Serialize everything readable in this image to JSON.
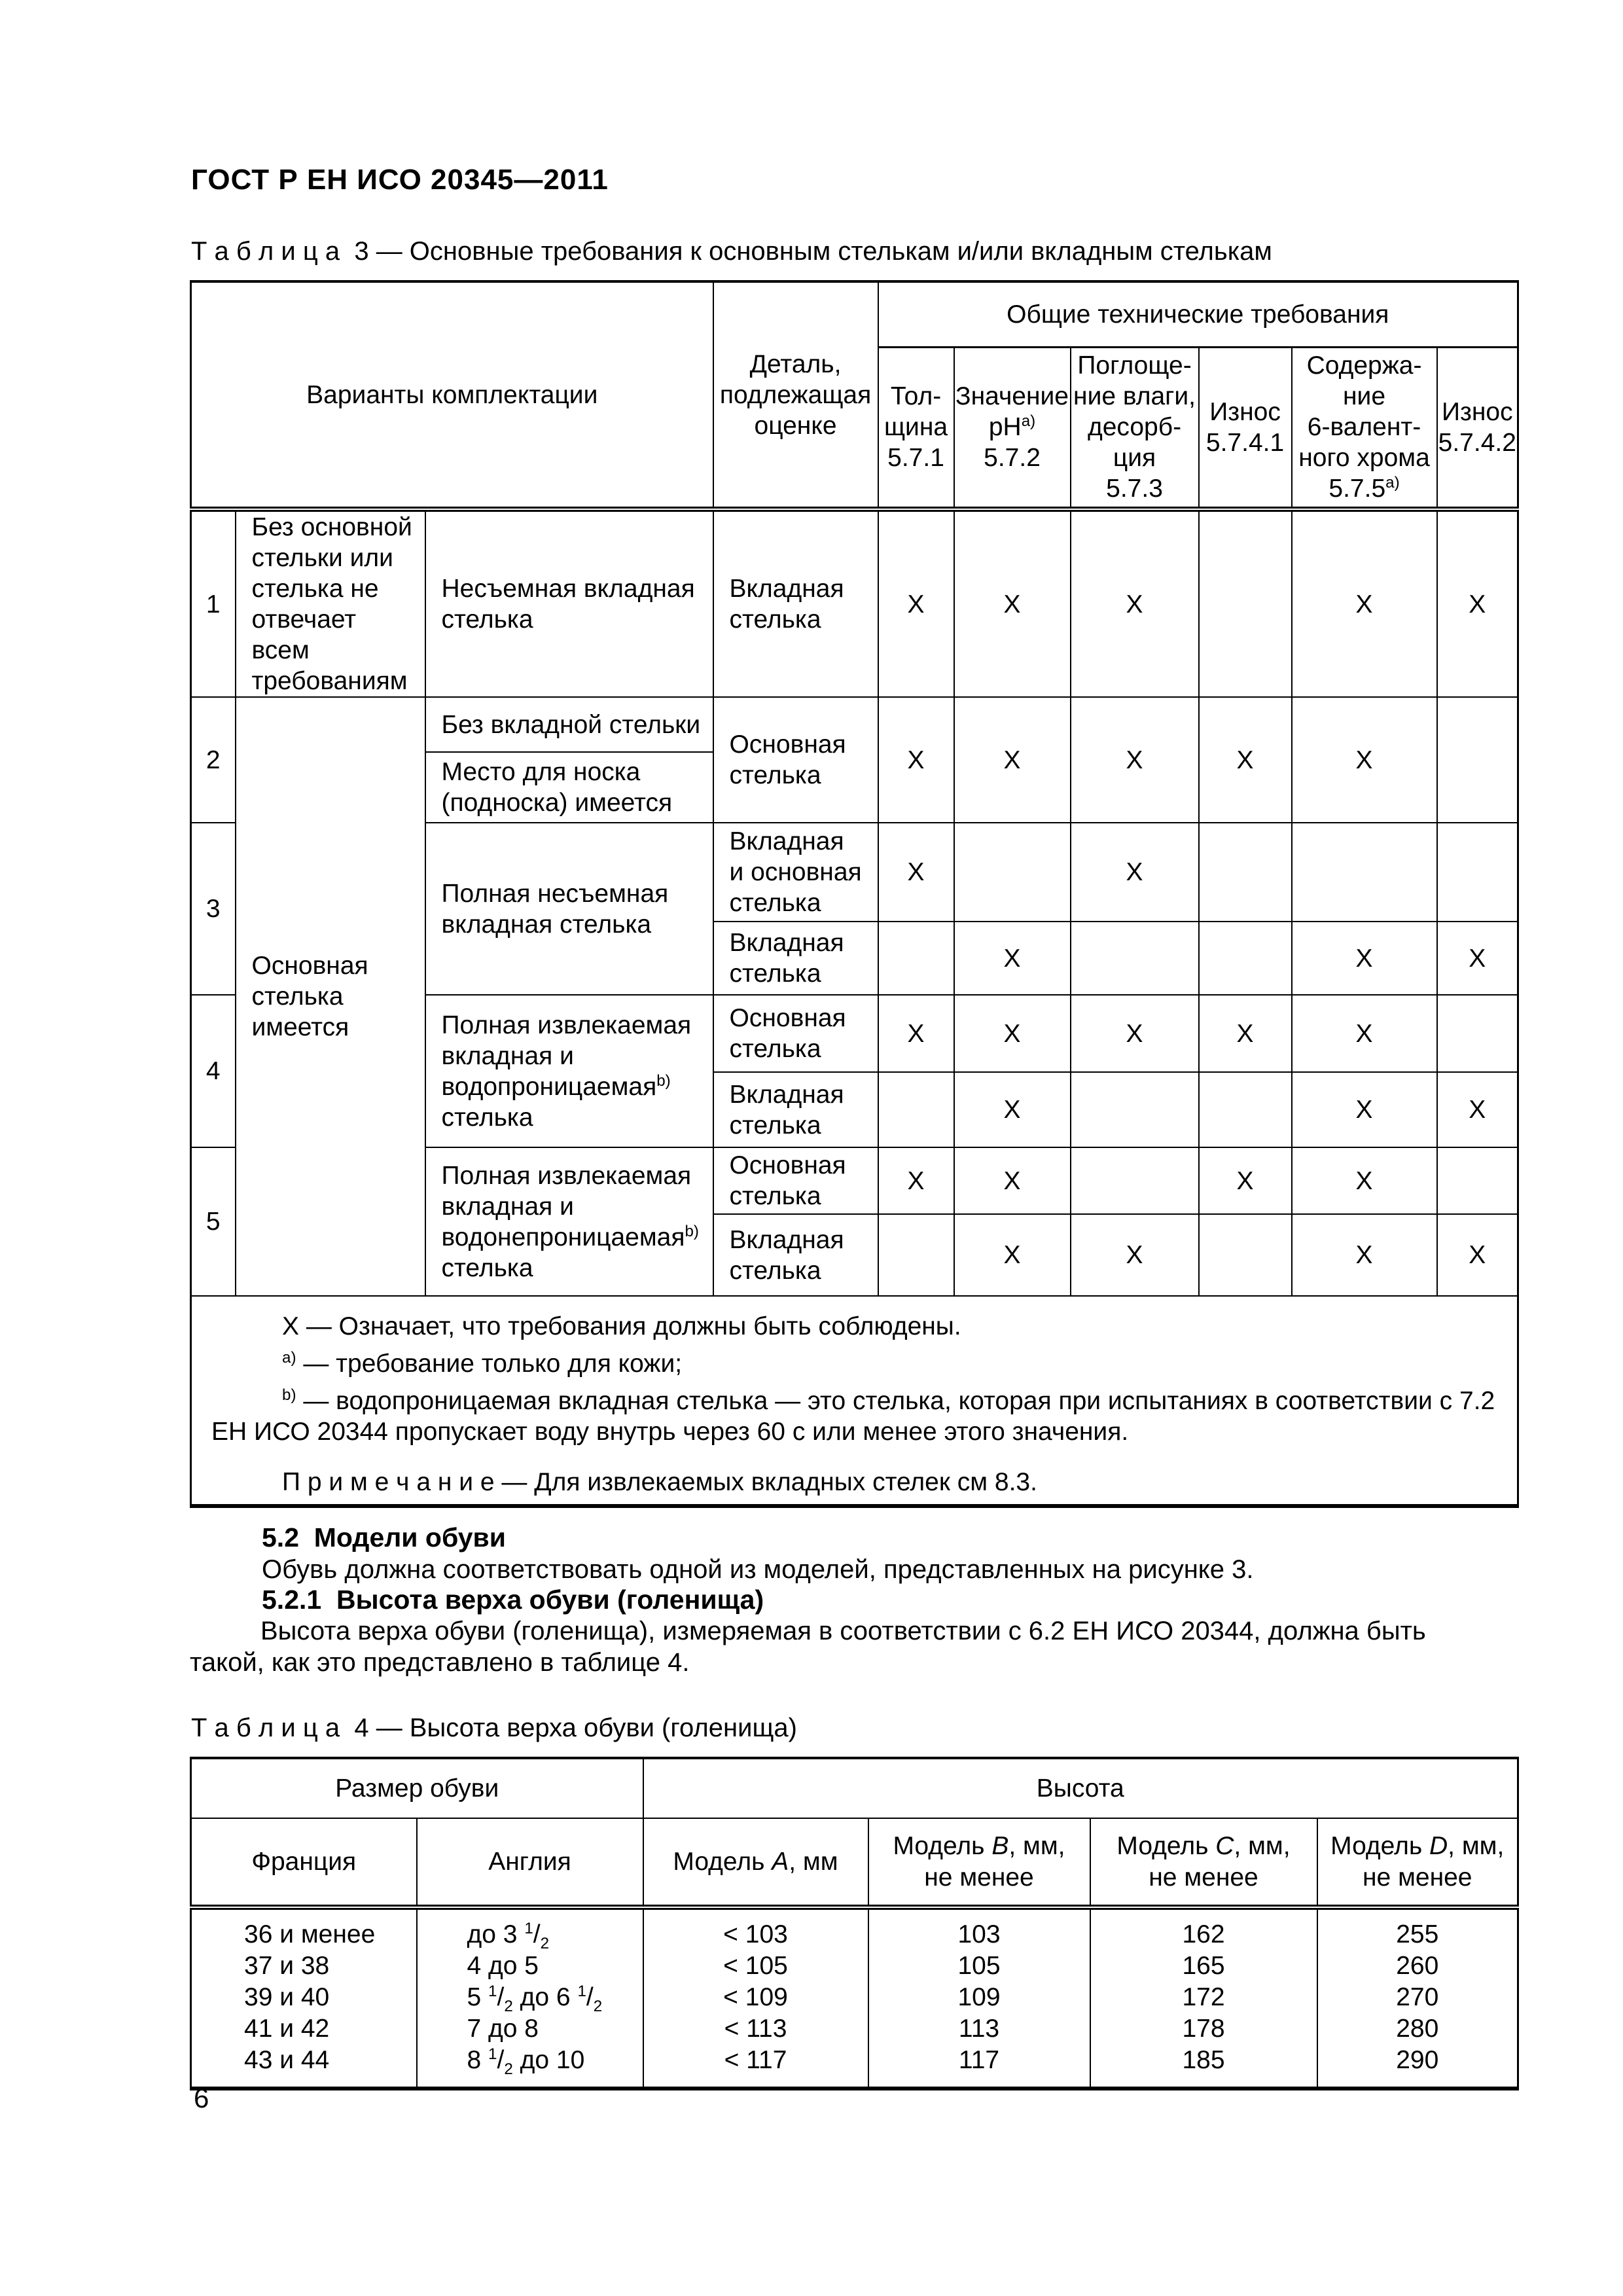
{
  "page": {
    "header": "ГОСТ Р ЕН ИСО 20345—2011",
    "number": "6"
  },
  "table3": {
    "caption": "Т а б л и ц а  3 — Основные требования к основным стелькам и/или вкладным стелькам",
    "header": {
      "variants": "Варианты комплектации",
      "detail": "Деталь,\nподлежащая\nоценке",
      "general": "Общие технические требования",
      "cols": [
        "Тол-\nщина\n5.7.1",
        "Значение\nрН^{а)}\n5.7.2",
        "Поглоще-\nние влаги,\nдесорб-\nция\n5.7.3",
        "Износ\n5.7.4.1",
        "Содержа-\nние\n6-валент-\nного хрома\n5.7.5^{а)}",
        "Износ\n5.7.4.2"
      ]
    },
    "body": {
      "group2": "Основная\nстелька\nимеется",
      "r1": {
        "num": "1",
        "group": "Без основной\nстельки или\nстелька не\nотвечает\nвсем\nтребованиям",
        "variant": "Несъемная вкладная\nстелька",
        "detail": "Вкладная\nстелька",
        "marks": [
          "X",
          "X",
          "X",
          "",
          "X",
          "X"
        ]
      },
      "r2": {
        "num": "2",
        "variant_a": "Без вкладной стельки",
        "variant_b": "Место для носка\n(подноска) имеется",
        "detail": "Основная\nстелька",
        "marks": [
          "X",
          "X",
          "X",
          "X",
          "X",
          ""
        ]
      },
      "r3": {
        "num": "3",
        "variant": "Полная несъемная\nвкладная стелька",
        "detail_a": "Вкладная\nи основная\nстелька",
        "marks_a": [
          "X",
          "",
          "X",
          "",
          "",
          ""
        ],
        "detail_b": "Вкладная\nстелька",
        "marks_b": [
          "",
          "X",
          "",
          "",
          "X",
          "X"
        ]
      },
      "r4": {
        "num": "4",
        "variant": "Полная извлекаемая\nвкладная и\nводопроницаемая^{b)}\nстелька",
        "detail_a": "Основная\nстелька",
        "marks_a": [
          "X",
          "X",
          "X",
          "X",
          "X",
          ""
        ],
        "detail_b": "Вкладная\nстелька",
        "marks_b": [
          "",
          "X",
          "",
          "",
          "X",
          "X"
        ]
      },
      "r5": {
        "num": "5",
        "variant": "Полная извлекаемая\nвкладная и\nводонепроницаемая^{b)}\nстелька",
        "detail_a": "Основная\nстелька",
        "marks_a": [
          "X",
          "X",
          "",
          "X",
          "X",
          ""
        ],
        "detail_b": "Вкладная\nстелька",
        "marks_b": [
          "",
          "X",
          "X",
          "",
          "X",
          "X"
        ]
      }
    },
    "footnotes": [
      "X — Означает, что требования должны быть соблюдены.",
      "^{а)} — требование только для кожи;",
      "^{b)} — водопроницаемая  вкладная  стелька — это  стелька,  которая  при  испытаниях  в  соответствии  с  7.2\nЕН ИСО 20344 пропускает воду внутрь через 60 с или менее этого значения."
    ],
    "note": "П р и м е ч а н и е — Для извлекаемых вкладных стелек см 8.3."
  },
  "section": {
    "h52": "5.2  Модели обуви",
    "p1": "Обувь должна соответствовать одной из моделей, представленных на рисунке 3.",
    "h521": "5.2.1  Высота верха обуви (голенища)",
    "p2": "Высота верха обуви (голенища), измеряемая в соответствии с 6.2 ЕН ИСО 20344, должна быть\nтакой, как это представлено в таблице 4."
  },
  "table4": {
    "caption": "Т а б л и ц а  4 — Высота верха обуви (голенища)",
    "header": {
      "size": "Размер обуви",
      "height": "Высота",
      "cols": [
        "Франция",
        "Англия",
        "Модель ~{A}, мм",
        "Модель ~{B}, мм,\nне менее",
        "Модель ~{C}, мм,\nне менее",
        "Модель ~{D}, мм,\nне менее"
      ]
    },
    "rows": [
      [
        "36 и менее",
        "до 3 ^{1}/_{2}",
        "< 103",
        "103",
        "162",
        "255"
      ],
      [
        "37 и 38",
        "4 до 5",
        "< 105",
        "105",
        "165",
        "260"
      ],
      [
        "39 и 40",
        "5 ^{1}/_{2} до 6 ^{1}/_{2}",
        "< 109",
        "109",
        "172",
        "270"
      ],
      [
        "41 и 42",
        "7 до 8",
        "< 113",
        "113",
        "178",
        "280"
      ],
      [
        "43 и 44",
        "8 ^{1}/_{2} до 10",
        "< 117",
        "117",
        "185",
        "290"
      ]
    ]
  }
}
